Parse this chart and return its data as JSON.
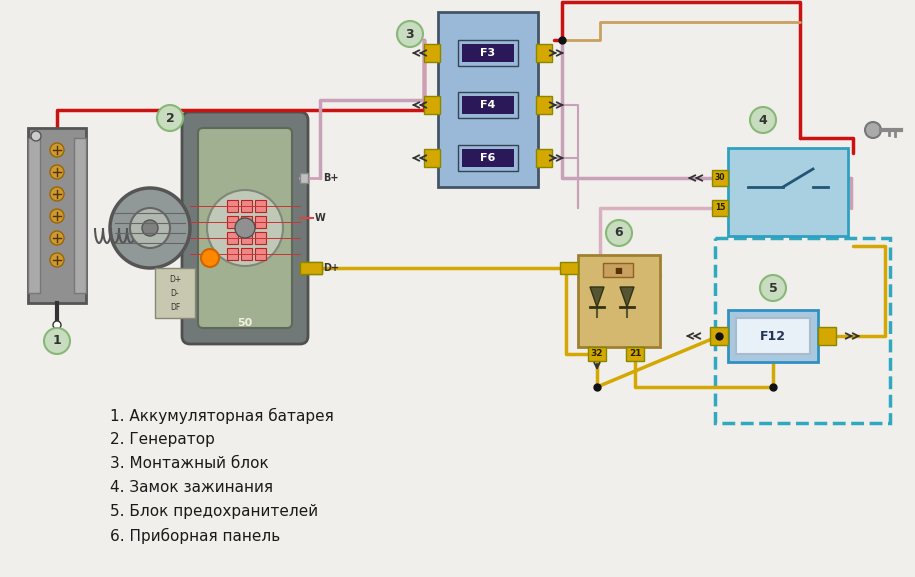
{
  "bg_color": "#f0efeb",
  "legend": [
    "1. Аккумуляторная батарея",
    "2. Генератор",
    "3. Монтажный блок",
    "4. Замок зажинания",
    "5. Блок предохранителей",
    "6. Приборная панель"
  ],
  "wire_red": "#cc1111",
  "wire_pink": "#c8a0b8",
  "wire_brown": "#c8a060",
  "wire_yellow": "#d4a800",
  "fuse_bg": "#9ab8d8",
  "fuse_element": "#2a1858",
  "fuse_connector_color": "#d4a800",
  "circle_bg": "#c8dcc0",
  "circle_border": "#88b878",
  "ignition_bg": "#a8d0e0",
  "ignition_border": "#30a0c0",
  "relay_bg": "#d4b870",
  "relay_border": "#a08030",
  "f12_bg": "#a8c8e0",
  "f12_border": "#3090c0",
  "dashed_border": "#30a8c0",
  "bat_bg": "#909090",
  "bat_border": "#555555",
  "gen_outer_color": "#a8b898",
  "gen_inner_color": "#c0c8c0"
}
